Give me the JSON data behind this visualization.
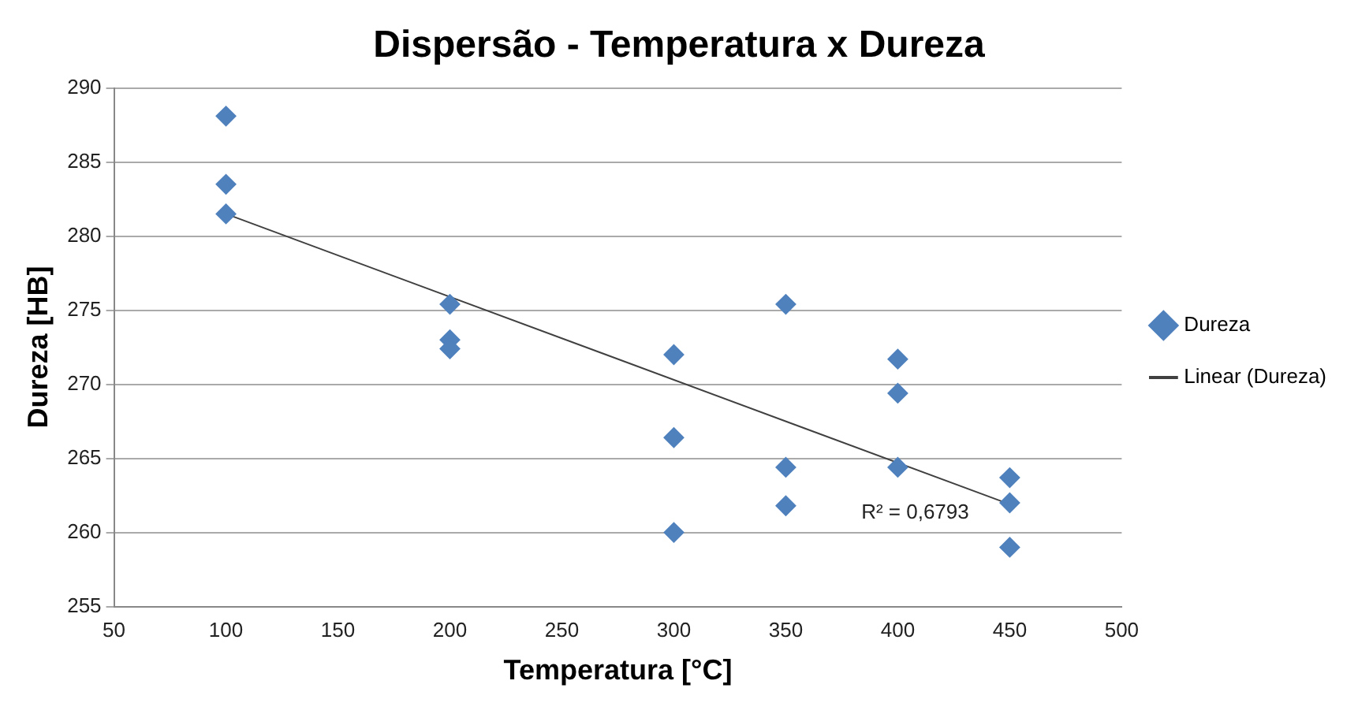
{
  "chart_data": {
    "type": "scatter",
    "title": "Dispersão - Temperatura x Dureza",
    "xlabel": "Temperatura [°C]",
    "ylabel": "Dureza [HB]",
    "xlim": [
      50,
      500
    ],
    "xticks": [
      50,
      100,
      150,
      200,
      250,
      300,
      350,
      400,
      450,
      500
    ],
    "ylim": [
      255,
      290
    ],
    "yticks": [
      255,
      260,
      265,
      270,
      275,
      280,
      285,
      290
    ],
    "grid": "y",
    "legend": "right",
    "marker": "diamond",
    "series": [
      {
        "name": "Dureza",
        "color": "#4f81bd",
        "x": [
          100,
          100,
          100,
          200,
          200,
          200,
          300,
          300,
          300,
          350,
          350,
          350,
          400,
          400,
          400,
          450,
          450,
          450
        ],
        "values": [
          288.1,
          283.5,
          281.5,
          275.4,
          273.0,
          272.4,
          272.0,
          266.4,
          260.0,
          275.4,
          264.4,
          261.8,
          271.7,
          269.4,
          264.4,
          263.7,
          262.0,
          259.0
        ]
      },
      {
        "name": "Linear (Dureza)",
        "type": "line",
        "color": "#404040",
        "x": [
          100,
          450
        ],
        "values": [
          281.5,
          261.9
        ],
        "marker": "none"
      }
    ],
    "annotations": [
      "R² = 0,6793"
    ]
  }
}
